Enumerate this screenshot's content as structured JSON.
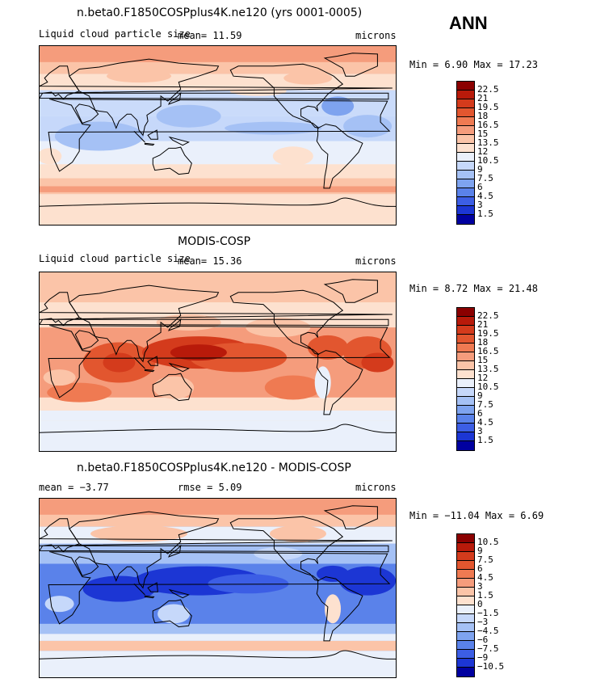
{
  "season": "ANN",
  "panels": [
    {
      "title": "n.beta0.F1850COSPplus4K.ne120 (yrs 0001-0005)",
      "left_label": "Liquid cloud particle size",
      "mid_label": "mean=   11.59",
      "units": "microns",
      "minmax": "Min =    6.90  Max =   17.23",
      "levels": [
        "22.5",
        "21",
        "19.5",
        "18",
        "16.5",
        "15",
        "13.5",
        "12",
        "10.5",
        "9",
        "7.5",
        "6",
        "4.5",
        "3",
        "1.5"
      ]
    },
    {
      "title": "MODIS-COSP",
      "left_label": "Liquid cloud particle size",
      "mid_label": "mean=   15.36",
      "units": "microns",
      "minmax": "Min =    8.72  Max =   21.48",
      "levels": [
        "22.5",
        "21",
        "19.5",
        "18",
        "16.5",
        "15",
        "13.5",
        "12",
        "10.5",
        "9",
        "7.5",
        "6",
        "4.5",
        "3",
        "1.5"
      ]
    },
    {
      "title": "n.beta0.F1850COSPplus4K.ne120 - MODIS-COSP",
      "left_label": "mean =   −3.77",
      "mid_label": "rmse =    5.09",
      "units": "microns",
      "minmax": "Min = −11.04  Max =    6.69",
      "levels": [
        "10.5",
        "9",
        "7.5",
        "6",
        "4.5",
        "3",
        "1.5",
        "0",
        "−1.5",
        "−3",
        "−4.5",
        "−6",
        "−7.5",
        "−9",
        "−10.5"
      ]
    }
  ],
  "colors": {
    "palette": [
      "#8b0000",
      "#b81a0a",
      "#d43b1c",
      "#e2562f",
      "#ef7a52",
      "#f59c7c",
      "#fbc4a8",
      "#fde1cf",
      "#eaf0fb",
      "#c6d8fa",
      "#a5c1f5",
      "#7ea3ef",
      "#5a82ea",
      "#3c5ee5",
      "#1c36d4",
      "#0000a0"
    ],
    "land_line": "#000000"
  }
}
